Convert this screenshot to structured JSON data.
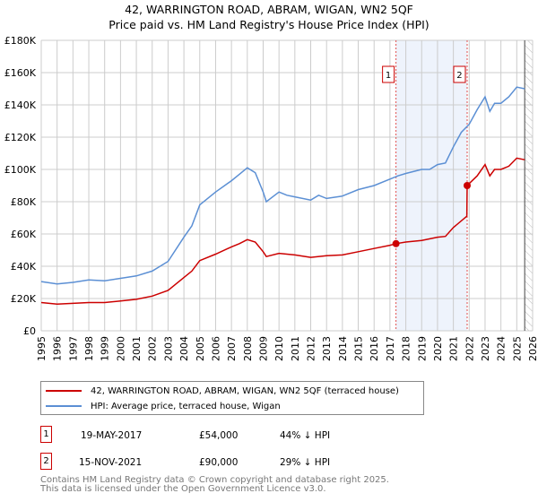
{
  "chart_data": {
    "type": "line",
    "title": "42, WARRINGTON ROAD, ABRAM, WIGAN, WN2 5QF",
    "subtitle": "Price paid vs. HM Land Registry's House Price Index (HPI)",
    "xlim": [
      1995,
      2026
    ],
    "ylim": [
      0,
      180000
    ],
    "x_ticks": [
      "1995",
      "1996",
      "1997",
      "1998",
      "1999",
      "2000",
      "2001",
      "2002",
      "2003",
      "2004",
      "2005",
      "2006",
      "2007",
      "2008",
      "2009",
      "2010",
      "2011",
      "2012",
      "2013",
      "2014",
      "2015",
      "2016",
      "2017",
      "2018",
      "2019",
      "2020",
      "2021",
      "2022",
      "2023",
      "2024",
      "2025",
      "2026"
    ],
    "y_ticks": [
      {
        "v": 0,
        "label": "£0"
      },
      {
        "v": 20000,
        "label": "£20K"
      },
      {
        "v": 40000,
        "label": "£40K"
      },
      {
        "v": 60000,
        "label": "£60K"
      },
      {
        "v": 80000,
        "label": "£80K"
      },
      {
        "v": 100000,
        "label": "£100K"
      },
      {
        "v": 120000,
        "label": "£120K"
      },
      {
        "v": 140000,
        "label": "£140K"
      },
      {
        "v": 160000,
        "label": "£160K"
      },
      {
        "v": 180000,
        "label": "£180K"
      }
    ],
    "grid": true,
    "shaded_range": [
      2017.38,
      2021.87
    ],
    "data_end": 2025.5,
    "series": [
      {
        "name": "42, WARRINGTON ROAD, ABRAM, WIGAN, WN2 5QF (terraced house)",
        "color": "#cc0000",
        "x": [
          1995,
          1996,
          1997,
          1998,
          1999,
          2000,
          2001,
          2002,
          2003,
          2004,
          2004.5,
          2005,
          2006,
          2007,
          2007.5,
          2008,
          2008.5,
          2009,
          2009.2,
          2010,
          2011,
          2012,
          2013,
          2014,
          2015,
          2016,
          2017,
          2017.38,
          2018,
          2019,
          2020,
          2020.5,
          2021,
          2021.85,
          2021.87,
          2022.5,
          2023,
          2023.3,
          2023.6,
          2024,
          2024.5,
          2025,
          2025.5
        ],
        "y": [
          17500,
          16500,
          17000,
          17500,
          17500,
          18500,
          19500,
          21500,
          25000,
          33000,
          37000,
          43500,
          47500,
          52000,
          54000,
          56500,
          55000,
          49000,
          46000,
          48000,
          47000,
          45500,
          46500,
          47000,
          49000,
          51000,
          53000,
          54000,
          55000,
          56000,
          58000,
          58500,
          64000,
          71000,
          90000,
          96000,
          103000,
          96000,
          100000,
          100000,
          102000,
          107000,
          106000
        ]
      },
      {
        "name": "HPI: Average price, terraced house, Wigan",
        "color": "#5b8fd4",
        "x": [
          1995,
          1996,
          1997,
          1998,
          1999,
          2000,
          2001,
          2002,
          2003,
          2004,
          2004.5,
          2005,
          2006,
          2007,
          2007.5,
          2008,
          2008.5,
          2009,
          2009.2,
          2010,
          2010.5,
          2011,
          2012,
          2012.5,
          2013,
          2014,
          2015,
          2016,
          2017,
          2017.5,
          2018,
          2019,
          2019.5,
          2020,
          2020.5,
          2021,
          2021.5,
          2022,
          2022.5,
          2023,
          2023.3,
          2023.6,
          2024,
          2024.5,
          2025,
          2025.5
        ],
        "y": [
          30500,
          29000,
          30000,
          31500,
          31000,
          32500,
          34000,
          37000,
          43000,
          58000,
          65000,
          78000,
          86000,
          93000,
          97000,
          101000,
          98000,
          86000,
          80000,
          86000,
          84000,
          83000,
          81000,
          84000,
          82000,
          83500,
          87500,
          90000,
          94000,
          96000,
          97500,
          100000,
          100000,
          103000,
          104000,
          114000,
          123000,
          128000,
          137000,
          145000,
          136000,
          141000,
          141000,
          145000,
          151000,
          150000
        ]
      }
    ],
    "sales": [
      {
        "label": "1",
        "x": 2017.38,
        "price": 54000,
        "date": "19-MAY-2017",
        "price_label": "£54,000",
        "hpi": "44% ↓ HPI"
      },
      {
        "label": "2",
        "x": 2021.87,
        "price": 90000,
        "date": "15-NOV-2021",
        "price_label": "£90,000",
        "hpi": "29% ↓ HPI"
      }
    ]
  },
  "footer": {
    "line1": "Contains HM Land Registry data © Crown copyright and database right 2025.",
    "line2": "This data is licensed under the Open Government Licence v3.0."
  }
}
